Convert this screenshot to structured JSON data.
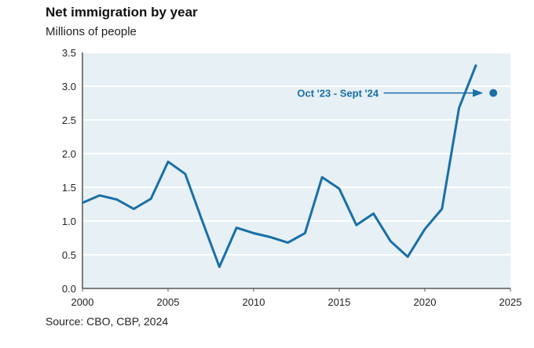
{
  "chart_data": {
    "type": "line",
    "title": "Net immigration by year",
    "subtitle": "Millions of people",
    "source": "Source: CBO, CBP, 2024",
    "xlabel": "",
    "ylabel": "",
    "xlim": [
      2000,
      2025
    ],
    "ylim": [
      0,
      3.5
    ],
    "xticks": [
      "2000",
      "2005",
      "2010",
      "2015",
      "2020",
      "2025"
    ],
    "yticks": [
      "0.0",
      "0.5",
      "1.0",
      "1.5",
      "2.0",
      "2.5",
      "3.0",
      "3.5"
    ],
    "grid": true,
    "series": [
      {
        "name": "Net immigration",
        "color": "#1a6fa6",
        "x": [
          2000,
          2001,
          2002,
          2003,
          2004,
          2005,
          2006,
          2007,
          2008,
          2009,
          2010,
          2011,
          2012,
          2013,
          2014,
          2015,
          2016,
          2017,
          2018,
          2019,
          2020,
          2021,
          2022,
          2023
        ],
        "y": [
          1.27,
          1.38,
          1.32,
          1.18,
          1.33,
          1.88,
          1.7,
          1.0,
          0.32,
          0.9,
          0.82,
          0.76,
          0.68,
          0.82,
          1.65,
          1.48,
          0.94,
          1.11,
          0.7,
          0.47,
          0.88,
          1.18,
          2.68,
          3.32
        ]
      }
    ],
    "point": {
      "x": 2024,
      "y": 2.9,
      "color": "#1a6fa6"
    },
    "annotation": {
      "text": "Oct  '23 - Sept '24"
    },
    "colors": {
      "background": "#e6f0f5",
      "grid": "#ffffff",
      "line": "#1a6fa6"
    }
  }
}
